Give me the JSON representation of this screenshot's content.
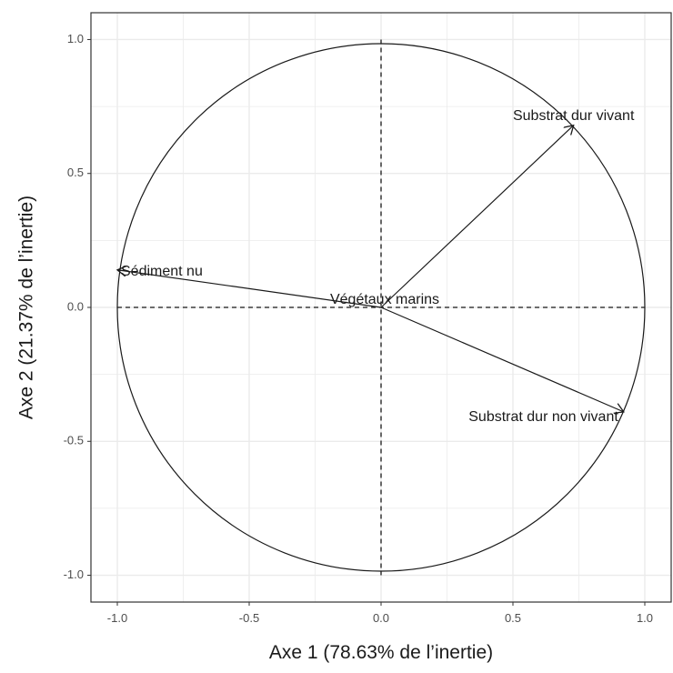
{
  "chart_data": {
    "type": "scatter",
    "subtype": "correlation-circle",
    "title": "",
    "xlabel": "Axe 1 (78.63% de l’inertie)",
    "ylabel": "Axe 2 (21.37% de l’inertie)",
    "xlim": [
      -1.1,
      1.1
    ],
    "ylim": [
      -1.1,
      1.1
    ],
    "x_ticks": [
      -1.0,
      -0.5,
      0.0,
      0.5,
      1.0
    ],
    "y_ticks": [
      -1.0,
      -0.5,
      0.0,
      0.5,
      1.0
    ],
    "x_tick_labels": [
      "-1.0",
      "-0.5",
      "0.0",
      "0.5",
      "1.0"
    ],
    "y_tick_labels": [
      "-1.0",
      "-0.5",
      "0.0",
      "0.5",
      "1.0"
    ],
    "grid": true,
    "unit_circle": true,
    "reference_lines": [
      0,
      0
    ],
    "variables": [
      {
        "label": "Substrat dur vivant",
        "x": 0.73,
        "y": 0.68
      },
      {
        "label": "Sédiment nu",
        "x": -1.0,
        "y": 0.14
      },
      {
        "label": "Végétaux marins",
        "x": 0.0,
        "y": 0.0
      },
      {
        "label": "Substrat dur non vivant",
        "x": 0.92,
        "y": -0.39
      }
    ]
  },
  "colors": {
    "panel_border": "#333333",
    "grid": "#ebebeb",
    "ink": "#1a1a1a",
    "tick_text": "#4d4d4d"
  }
}
